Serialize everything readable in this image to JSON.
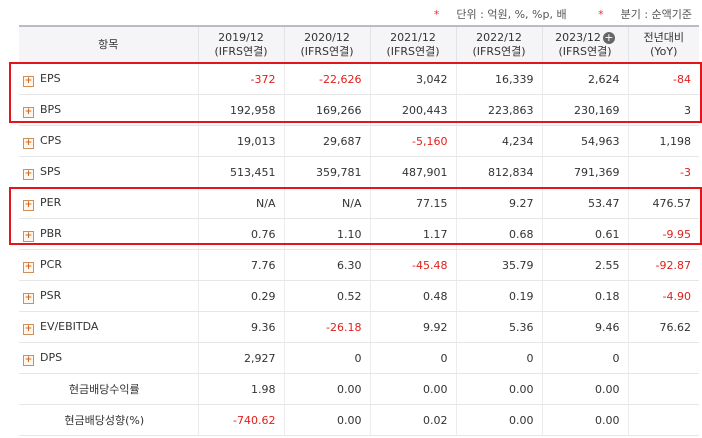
{
  "notes": {
    "unit": "단위 : 억원, %, %p, 배",
    "quarter": "분기 : 순액기준"
  },
  "header": {
    "item": "항목",
    "cols": [
      {
        "line1": "2019/12",
        "line2": "(IFRS연결)"
      },
      {
        "line1": "2020/12",
        "line2": "(IFRS연결)"
      },
      {
        "line1": "2021/12",
        "line2": "(IFRS연결)"
      },
      {
        "line1": "2022/12",
        "line2": "(IFRS연결)"
      },
      {
        "line1": "2023/12",
        "line2": "(IFRS연결)"
      },
      {
        "line1": "전년대비",
        "line2": "(YoY)"
      }
    ]
  },
  "rows": [
    {
      "label": "EPS",
      "expand": true,
      "values": [
        "-372",
        "-22,626",
        "3,042",
        "16,339",
        "2,624",
        "-84"
      ]
    },
    {
      "label": "BPS",
      "expand": true,
      "values": [
        "192,958",
        "169,266",
        "200,443",
        "223,863",
        "230,169",
        "3"
      ]
    },
    {
      "label": "CPS",
      "expand": true,
      "values": [
        "19,013",
        "29,687",
        "-5,160",
        "4,234",
        "54,963",
        "1,198"
      ]
    },
    {
      "label": "SPS",
      "expand": true,
      "values": [
        "513,451",
        "359,781",
        "487,901",
        "812,834",
        "791,369",
        "-3"
      ]
    },
    {
      "label": "PER",
      "expand": true,
      "values": [
        "N/A",
        "N/A",
        "77.15",
        "9.27",
        "53.47",
        "476.57"
      ]
    },
    {
      "label": "PBR",
      "expand": true,
      "values": [
        "0.76",
        "1.10",
        "1.17",
        "0.68",
        "0.61",
        "-9.95"
      ]
    },
    {
      "label": "PCR",
      "expand": true,
      "values": [
        "7.76",
        "6.30",
        "-45.48",
        "35.79",
        "2.55",
        "-92.87"
      ]
    },
    {
      "label": "PSR",
      "expand": true,
      "values": [
        "0.29",
        "0.52",
        "0.48",
        "0.19",
        "0.18",
        "-4.90"
      ]
    },
    {
      "label": "EV/EBITDA",
      "expand": true,
      "values": [
        "9.36",
        "-26.18",
        "9.92",
        "5.36",
        "9.46",
        "76.62"
      ]
    },
    {
      "label": "DPS",
      "expand": true,
      "values": [
        "2,927",
        "0",
        "0",
        "0",
        "0",
        ""
      ]
    },
    {
      "label": "현금배당수익률",
      "expand": false,
      "values": [
        "1.98",
        "0.00",
        "0.00",
        "0.00",
        "0.00",
        ""
      ]
    },
    {
      "label": "현금배당성향(%)",
      "expand": false,
      "values": [
        "-740.62",
        "0.00",
        "0.02",
        "0.00",
        "0.00",
        ""
      ]
    }
  ],
  "colors": {
    "negative": "#e0201b",
    "highlight": "#e2141c",
    "expand_icon": "#d2691e"
  },
  "icons": {
    "expand": "plus-square-icon",
    "header_add": "plus-circle-icon"
  }
}
